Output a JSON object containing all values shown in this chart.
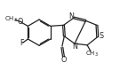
{
  "bg_color": "#ffffff",
  "line_color": "#222222",
  "line_width": 0.9,
  "font_size": 5.8,
  "figsize": [
    1.53,
    0.8
  ],
  "dpi": 100,
  "xlim": [
    0.0,
    9.2
  ],
  "ylim": [
    0.5,
    5.2
  ]
}
